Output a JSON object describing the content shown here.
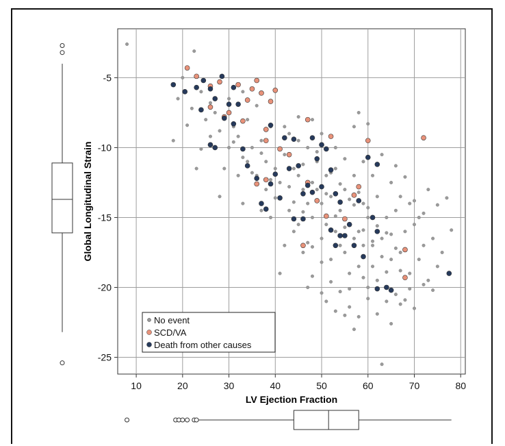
{
  "chart_data": {
    "type": "scatter",
    "title": "",
    "xlabel": "LV Ejection Fraction",
    "ylabel": "Global Longitudinal Strain",
    "xlim": [
      6,
      81
    ],
    "ylim": [
      -26.2,
      -1.5
    ],
    "x_ticks": [
      10,
      20,
      30,
      40,
      50,
      60,
      70,
      80
    ],
    "y_ticks": [
      -5,
      -10,
      -15,
      -20,
      -25
    ],
    "x_tick_labels": [
      "10",
      "20",
      "30",
      "40",
      "50",
      "60",
      "70",
      "80"
    ],
    "y_tick_labels": [
      "-5",
      "-10",
      "-15",
      "-20",
      "-25"
    ],
    "grid": true,
    "legend_position": "bottom-left",
    "legend": [
      {
        "label": "No event",
        "color": "#9a9a9a"
      },
      {
        "label": "SCD/VA",
        "color": "#e8927a"
      },
      {
        "label": "Death from other causes",
        "color": "#263a5c"
      }
    ],
    "series": [
      {
        "name": "No event",
        "color": "#9a9a9a",
        "note_generated": false,
        "points": [
          [
            8,
            -2.6
          ],
          [
            22.5,
            -3.1
          ],
          [
            19,
            -6.5
          ],
          [
            20,
            -5
          ],
          [
            22,
            -7.2
          ],
          [
            24,
            -6
          ],
          [
            25,
            -8
          ],
          [
            26,
            -6.8
          ],
          [
            27,
            -7.5
          ],
          [
            28,
            -8.8
          ],
          [
            30,
            -6.5
          ],
          [
            31,
            -8.5
          ],
          [
            32,
            -9.2
          ],
          [
            33,
            -6
          ],
          [
            34,
            -8
          ],
          [
            35,
            -10
          ],
          [
            36,
            -7
          ],
          [
            37,
            -9.5
          ],
          [
            38,
            -11
          ],
          [
            39,
            -8.5
          ],
          [
            40,
            -11.5
          ],
          [
            41,
            -12.5
          ],
          [
            42,
            -10.5
          ],
          [
            43,
            -9
          ],
          [
            44,
            -11.5
          ],
          [
            45,
            -12
          ],
          [
            46,
            -13
          ],
          [
            47,
            -10
          ],
          [
            48,
            -12.5
          ],
          [
            49,
            -11
          ],
          [
            50,
            -14
          ],
          [
            51,
            -12
          ],
          [
            52,
            -13.5
          ],
          [
            53,
            -11.5
          ],
          [
            54,
            -14.5
          ],
          [
            55,
            -13
          ],
          [
            56,
            -15.5
          ],
          [
            57,
            -12
          ],
          [
            58,
            -16
          ],
          [
            59,
            -14
          ],
          [
            60,
            -15
          ],
          [
            61,
            -17
          ],
          [
            62,
            -13.5
          ],
          [
            63,
            -16.5
          ],
          [
            64,
            -15
          ],
          [
            65,
            -18
          ],
          [
            66,
            -14.5
          ],
          [
            67,
            -17.5
          ],
          [
            68,
            -16
          ],
          [
            69,
            -19
          ],
          [
            70,
            -15.5
          ],
          [
            71,
            -18
          ],
          [
            72,
            -17
          ],
          [
            73,
            -19.5
          ],
          [
            74,
            -16.5
          ],
          [
            75,
            -18.5
          ],
          [
            76,
            -17.5
          ],
          [
            78,
            -15.9
          ],
          [
            44,
            -16
          ],
          [
            46,
            -17.5
          ],
          [
            48,
            -15
          ],
          [
            50,
            -16.5
          ],
          [
            52,
            -18
          ],
          [
            54,
            -17
          ],
          [
            56,
            -19
          ],
          [
            58,
            -18.5
          ],
          [
            60,
            -20
          ],
          [
            62,
            -19.5
          ],
          [
            64,
            -21
          ],
          [
            66,
            -20.5
          ],
          [
            47,
            -20
          ],
          [
            51,
            -21
          ],
          [
            55,
            -22
          ],
          [
            57,
            -23
          ],
          [
            63,
            -25.5
          ],
          [
            41,
            -19
          ],
          [
            42,
            -17
          ],
          [
            43,
            -14.5
          ],
          [
            45,
            -15.5
          ],
          [
            47,
            -14
          ],
          [
            49,
            -13
          ],
          [
            51,
            -15.5
          ],
          [
            53,
            -16
          ],
          [
            55,
            -17.5
          ],
          [
            57,
            -16.5
          ],
          [
            59,
            -17
          ],
          [
            61,
            -18.5
          ],
          [
            63,
            -17.8
          ],
          [
            65,
            -16.2
          ],
          [
            67,
            -18.8
          ],
          [
            36,
            -12
          ],
          [
            38,
            -13
          ],
          [
            34,
            -11
          ],
          [
            32,
            -12
          ],
          [
            30,
            -10
          ],
          [
            29,
            -11.5
          ],
          [
            28,
            -13.5
          ],
          [
            33,
            -14
          ],
          [
            37,
            -14.5
          ],
          [
            39,
            -15
          ],
          [
            42,
            -8.5
          ],
          [
            45,
            -9.5
          ],
          [
            48,
            -8
          ],
          [
            50,
            -9
          ],
          [
            53,
            -10
          ],
          [
            55,
            -10.8
          ],
          [
            57,
            -8.5
          ],
          [
            59,
            -11
          ],
          [
            61,
            -12
          ],
          [
            63,
            -10.5
          ],
          [
            65,
            -12.5
          ],
          [
            67,
            -13.5
          ],
          [
            69,
            -14
          ],
          [
            71,
            -15
          ],
          [
            73,
            -13
          ],
          [
            46,
            -11.2
          ],
          [
            49,
            -10.3
          ],
          [
            52,
            -11.8
          ],
          [
            54,
            -12.6
          ],
          [
            56,
            -13.7
          ],
          [
            58,
            -13.2
          ],
          [
            60,
            -14.3
          ],
          [
            62,
            -15.6
          ],
          [
            64,
            -16.1
          ],
          [
            66,
            -17.2
          ],
          [
            40,
            -13.6
          ],
          [
            43,
            -12.8
          ],
          [
            44,
            -13.9
          ],
          [
            47,
            -16.8
          ],
          [
            50,
            -18.2
          ],
          [
            52,
            -19.6
          ],
          [
            54,
            -20.3
          ],
          [
            56,
            -21.4
          ],
          [
            58,
            -22.1
          ],
          [
            60,
            -20.8
          ],
          [
            68,
            -20.9
          ],
          [
            70,
            -21.5
          ],
          [
            72,
            -19.8
          ],
          [
            74,
            -20.2
          ],
          [
            46,
            -14.6
          ],
          [
            48,
            -17.1
          ],
          [
            51,
            -13.3
          ],
          [
            53,
            -14.9
          ],
          [
            55,
            -15.7
          ],
          [
            57,
            -14.1
          ],
          [
            59,
            -15.9
          ],
          [
            61,
            -16.7
          ],
          [
            35,
            -11.8
          ],
          [
            37,
            -10.4
          ],
          [
            39,
            -12.3
          ],
          [
            31,
            -9.6
          ],
          [
            33,
            -10.7
          ],
          [
            26,
            -9.2
          ],
          [
            24,
            -10.1
          ],
          [
            21,
            -8.4
          ],
          [
            18,
            -9.5
          ],
          [
            23,
            -11.5
          ],
          [
            45,
            -7.8
          ],
          [
            58,
            -7.5
          ],
          [
            60,
            -8.3
          ],
          [
            66,
            -11.3
          ],
          [
            68,
            -12.1
          ],
          [
            70,
            -13.8
          ],
          [
            72,
            -14.7
          ],
          [
            75,
            -14.1
          ],
          [
            77,
            -13.6
          ],
          [
            48,
            -19.2
          ],
          [
            50,
            -20.4
          ],
          [
            53,
            -21.7
          ],
          [
            56,
            -20.1
          ],
          [
            59,
            -19.3
          ],
          [
            62,
            -21.9
          ],
          [
            65,
            -22.6
          ],
          [
            67,
            -21.2
          ],
          [
            69,
            -20.1
          ],
          [
            64,
            -18.9
          ]
        ]
      },
      {
        "name": "SCD/VA",
        "color": "#e8927a",
        "points": [
          [
            21,
            -4.3
          ],
          [
            23,
            -4.9
          ],
          [
            26,
            -5.6
          ],
          [
            28,
            -5.3
          ],
          [
            29,
            -7.8
          ],
          [
            30,
            -7.5
          ],
          [
            32,
            -5.5
          ],
          [
            33,
            -8.1
          ],
          [
            34,
            -6.6
          ],
          [
            35,
            -5.8
          ],
          [
            36,
            -5.2
          ],
          [
            37,
            -6.1
          ],
          [
            38,
            -8.7
          ],
          [
            39,
            -6.7
          ],
          [
            40,
            -5.9
          ],
          [
            38,
            -9.5
          ],
          [
            41,
            -10.1
          ],
          [
            43,
            -10.5
          ],
          [
            47,
            -8
          ],
          [
            52,
            -9.2
          ],
          [
            60,
            -9.5
          ],
          [
            72,
            -9.3
          ],
          [
            36,
            -12.6
          ],
          [
            38,
            -12.3
          ],
          [
            47,
            -12.5
          ],
          [
            49,
            -13.8
          ],
          [
            51,
            -14.9
          ],
          [
            55,
            -15.1
          ],
          [
            57,
            -13.4
          ],
          [
            58,
            -12.8
          ],
          [
            46,
            -17
          ],
          [
            68,
            -17.3
          ],
          [
            68,
            -19.3
          ],
          [
            26,
            -7.1
          ]
        ]
      },
      {
        "name": "Death from other causes",
        "color": "#263a5c",
        "points": [
          [
            18,
            -5.5
          ],
          [
            20.5,
            -6
          ],
          [
            23,
            -5.7
          ],
          [
            24.5,
            -5.2
          ],
          [
            26,
            -5.8
          ],
          [
            27,
            -6.5
          ],
          [
            28.5,
            -4.9
          ],
          [
            29,
            -7.9
          ],
          [
            30,
            -6.9
          ],
          [
            31,
            -5.7
          ],
          [
            32,
            -6.9
          ],
          [
            31,
            -8.3
          ],
          [
            26,
            -9.8
          ],
          [
            27,
            -10
          ],
          [
            24,
            -7.3
          ],
          [
            33,
            -10.1
          ],
          [
            34,
            -11.3
          ],
          [
            36,
            -12.2
          ],
          [
            39,
            -8.4
          ],
          [
            39,
            -12.6
          ],
          [
            40,
            -11.9
          ],
          [
            42,
            -9.3
          ],
          [
            43,
            -11.5
          ],
          [
            44,
            -9.4
          ],
          [
            45,
            -11.3
          ],
          [
            46,
            -15.1
          ],
          [
            47,
            -12.7
          ],
          [
            48,
            -9.3
          ],
          [
            49,
            -10.8
          ],
          [
            50,
            -9.8
          ],
          [
            50,
            -12.8
          ],
          [
            51,
            -10.1
          ],
          [
            52,
            -11.6
          ],
          [
            53,
            -13.3
          ],
          [
            54,
            -13.9
          ],
          [
            55,
            -16.3
          ],
          [
            56,
            -15.5
          ],
          [
            57,
            -17
          ],
          [
            58,
            -13.8
          ],
          [
            59,
            -17.8
          ],
          [
            60,
            -10.7
          ],
          [
            61,
            -15
          ],
          [
            62,
            -11.2
          ],
          [
            62,
            -16
          ],
          [
            62,
            -20.1
          ],
          [
            64,
            -20
          ],
          [
            44,
            -15.1
          ],
          [
            38,
            -14.4
          ],
          [
            37,
            -14
          ],
          [
            41,
            -13.6
          ],
          [
            53,
            -17
          ],
          [
            77.5,
            -19
          ],
          [
            46,
            -13.3
          ],
          [
            48,
            -13.2
          ],
          [
            52,
            -15.9
          ],
          [
            65,
            -20.2
          ],
          [
            54,
            -16.3
          ]
        ]
      }
    ],
    "marginal_boxplots": {
      "x": {
        "min": 23,
        "q1": 44,
        "median": 51.5,
        "q3": 58,
        "max": 78,
        "outliers": [
          8,
          18.5,
          19.2,
          20,
          21,
          22.5,
          23
        ]
      },
      "y": {
        "min": -23.2,
        "q1": -16.1,
        "median": -13.7,
        "q3": -11.1,
        "max": -4,
        "outliers": [
          -2.7,
          -3.2,
          -25.4
        ]
      }
    }
  }
}
